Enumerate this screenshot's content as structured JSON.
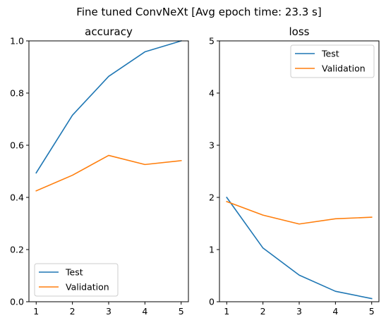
{
  "suptitle": "Fine tuned ConvNeXt [Avg epoch time: 23.3 s]",
  "colors": {
    "test": "#1f77b4",
    "validation": "#ff7f0e"
  },
  "chart_data": [
    {
      "type": "line",
      "title": "accuracy",
      "xlabel": "",
      "ylabel": "",
      "x": [
        1,
        2,
        3,
        4,
        5
      ],
      "xticks": [
        "1",
        "2",
        "3",
        "4",
        "5"
      ],
      "ylim": [
        0,
        1
      ],
      "yticks": [
        "0.0",
        "0.2",
        "0.4",
        "0.6",
        "0.8",
        "1.0"
      ],
      "legend_placement": "lower-left",
      "series": [
        {
          "name": "Test",
          "color": "#1f77b4",
          "values": [
            0.494,
            0.715,
            0.864,
            0.958,
            1.0
          ]
        },
        {
          "name": "Validation",
          "color": "#ff7f0e",
          "values": [
            0.425,
            0.485,
            0.561,
            0.526,
            0.541
          ]
        }
      ]
    },
    {
      "type": "line",
      "title": "loss",
      "xlabel": "",
      "ylabel": "",
      "x": [
        1,
        2,
        3,
        4,
        5
      ],
      "xticks": [
        "1",
        "2",
        "3",
        "4",
        "5"
      ],
      "ylim": [
        0,
        5
      ],
      "yticks": [
        "0",
        "1",
        "2",
        "3",
        "4",
        "5"
      ],
      "legend_placement": "upper-right",
      "series": [
        {
          "name": "Test",
          "color": "#1f77b4",
          "values": [
            2.0,
            1.03,
            0.51,
            0.2,
            0.06
          ]
        },
        {
          "name": "Validation",
          "color": "#ff7f0e",
          "values": [
            1.92,
            1.66,
            1.49,
            1.59,
            1.62
          ]
        }
      ]
    }
  ]
}
